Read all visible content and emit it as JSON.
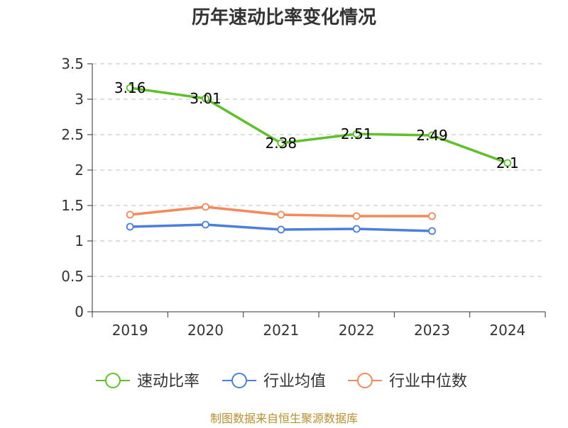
{
  "chart_data": {
    "type": "line",
    "title": "历年速动比率变化情况",
    "categories": [
      "2019",
      "2020",
      "2021",
      "2022",
      "2023",
      "2024"
    ],
    "ylim": [
      0,
      3.5
    ],
    "yticks": [
      "0",
      "0.5",
      "1",
      "1.5",
      "2",
      "2.5",
      "3",
      "3.5"
    ],
    "grid": true,
    "legend_position": "bottom",
    "series": [
      {
        "name": "速动比率",
        "color": "#5fc02a",
        "values": [
          3.16,
          3.01,
          2.38,
          2.51,
          2.49,
          2.1
        ],
        "labels": [
          "3.16",
          "3.01",
          "2.38",
          "2.51",
          "2.49",
          "2.1"
        ]
      },
      {
        "name": "行业均值",
        "color": "#4a7fdc",
        "values": [
          1.2,
          1.23,
          1.16,
          1.17,
          1.14,
          null
        ]
      },
      {
        "name": "行业中位数",
        "color": "#f4895a",
        "values": [
          1.37,
          1.48,
          1.37,
          1.35,
          1.35,
          null
        ]
      }
    ]
  },
  "source": "制图数据来自恒生聚源数据库"
}
